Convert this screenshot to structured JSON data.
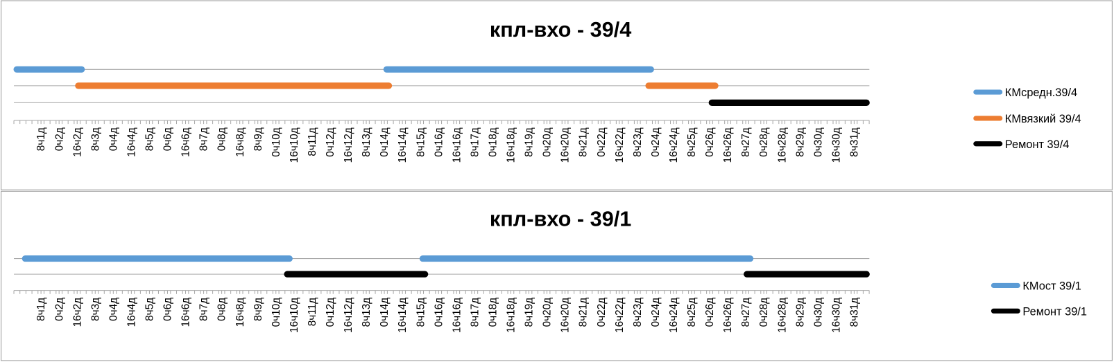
{
  "chart_data": [
    {
      "type": "timeline",
      "title": "кпл-вхо - 39/4",
      "xlim": [
        -16,
        744
      ],
      "legend": "right",
      "xticks": [
        {
          "value": 8,
          "label": "8ч1д"
        },
        {
          "value": 24,
          "label": "0ч2д"
        },
        {
          "value": 40,
          "label": "16ч2д"
        },
        {
          "value": 56,
          "label": "8ч3д"
        },
        {
          "value": 72,
          "label": "0ч4д"
        },
        {
          "value": 88,
          "label": "16ч4д"
        },
        {
          "value": 104,
          "label": "8ч5д"
        },
        {
          "value": 120,
          "label": "0ч6д"
        },
        {
          "value": 136,
          "label": "16ч6д"
        },
        {
          "value": 152,
          "label": "8ч7д"
        },
        {
          "value": 168,
          "label": "0ч8д"
        },
        {
          "value": 184,
          "label": "16ч8д"
        },
        {
          "value": 200,
          "label": "8ч9д"
        },
        {
          "value": 216,
          "label": "0ч10д"
        },
        {
          "value": 232,
          "label": "16ч10д"
        },
        {
          "value": 248,
          "label": "8ч11д"
        },
        {
          "value": 264,
          "label": "0ч12д"
        },
        {
          "value": 280,
          "label": "16ч12д"
        },
        {
          "value": 296,
          "label": "8ч13д"
        },
        {
          "value": 312,
          "label": "0ч14д"
        },
        {
          "value": 328,
          "label": "16ч14д"
        },
        {
          "value": 344,
          "label": "8ч15д"
        },
        {
          "value": 360,
          "label": "0ч16д"
        },
        {
          "value": 376,
          "label": "16ч16д"
        },
        {
          "value": 392,
          "label": "8ч17д"
        },
        {
          "value": 408,
          "label": "0ч18д"
        },
        {
          "value": 424,
          "label": "16ч18д"
        },
        {
          "value": 440,
          "label": "8ч19д"
        },
        {
          "value": 456,
          "label": "0ч20д"
        },
        {
          "value": 472,
          "label": "16ч20д"
        },
        {
          "value": 488,
          "label": "8ч21д"
        },
        {
          "value": 504,
          "label": "0ч22д"
        },
        {
          "value": 520,
          "label": "16ч22д"
        },
        {
          "value": 536,
          "label": "8ч23д"
        },
        {
          "value": 552,
          "label": "0ч24д"
        },
        {
          "value": 568,
          "label": "16ч24д"
        },
        {
          "value": 584,
          "label": "8ч25д"
        },
        {
          "value": 600,
          "label": "0ч26д"
        },
        {
          "value": 616,
          "label": "16ч26д"
        },
        {
          "value": 632,
          "label": "8ч27д"
        },
        {
          "value": 648,
          "label": "0ч28д"
        },
        {
          "value": 664,
          "label": "16ч28д"
        },
        {
          "value": 680,
          "label": "8ч29д"
        },
        {
          "value": 696,
          "label": "0ч30д"
        },
        {
          "value": 712,
          "label": "16ч30д"
        },
        {
          "value": 728,
          "label": "8ч31д"
        }
      ],
      "series": [
        {
          "name": "КМсредн.39/4",
          "color": "#5b9bd5",
          "segments": [
            [
              -16,
              44
            ],
            [
              314,
              548
            ]
          ]
        },
        {
          "name": "КМвязкий 39/4",
          "color": "#ed7d31",
          "segments": [
            [
              41,
              316
            ],
            [
              546,
              605
            ]
          ]
        },
        {
          "name": "Ремонт 39/4",
          "color": "#000000",
          "segments": [
            [
              602,
              744
            ]
          ]
        }
      ]
    },
    {
      "type": "timeline",
      "title": "кпл-вхо - 39/1",
      "xlim": [
        -16,
        744
      ],
      "legend": "right",
      "xticks": [
        {
          "value": 8,
          "label": "8ч1д"
        },
        {
          "value": 24,
          "label": "0ч2д"
        },
        {
          "value": 40,
          "label": "16ч2д"
        },
        {
          "value": 56,
          "label": "8ч3д"
        },
        {
          "value": 72,
          "label": "0ч4д"
        },
        {
          "value": 88,
          "label": "16ч4д"
        },
        {
          "value": 104,
          "label": "8ч5д"
        },
        {
          "value": 120,
          "label": "0ч6д"
        },
        {
          "value": 136,
          "label": "16ч6д"
        },
        {
          "value": 152,
          "label": "8ч7д"
        },
        {
          "value": 168,
          "label": "0ч8д"
        },
        {
          "value": 184,
          "label": "16ч8д"
        },
        {
          "value": 200,
          "label": "8ч9д"
        },
        {
          "value": 216,
          "label": "0ч10д"
        },
        {
          "value": 232,
          "label": "16ч10д"
        },
        {
          "value": 248,
          "label": "8ч11д"
        },
        {
          "value": 264,
          "label": "0ч12д"
        },
        {
          "value": 280,
          "label": "16ч12д"
        },
        {
          "value": 296,
          "label": "8ч13д"
        },
        {
          "value": 312,
          "label": "0ч14д"
        },
        {
          "value": 328,
          "label": "16ч14д"
        },
        {
          "value": 344,
          "label": "8ч15д"
        },
        {
          "value": 360,
          "label": "0ч16д"
        },
        {
          "value": 376,
          "label": "16ч16д"
        },
        {
          "value": 392,
          "label": "8ч17д"
        },
        {
          "value": 408,
          "label": "0ч18д"
        },
        {
          "value": 424,
          "label": "16ч18д"
        },
        {
          "value": 440,
          "label": "8ч19д"
        },
        {
          "value": 456,
          "label": "0ч20д"
        },
        {
          "value": 472,
          "label": "16ч20д"
        },
        {
          "value": 488,
          "label": "8ч21д"
        },
        {
          "value": 504,
          "label": "0ч22д"
        },
        {
          "value": 520,
          "label": "16ч22д"
        },
        {
          "value": 536,
          "label": "8ч23д"
        },
        {
          "value": 552,
          "label": "0ч24д"
        },
        {
          "value": 568,
          "label": "16ч24д"
        },
        {
          "value": 584,
          "label": "8ч25д"
        },
        {
          "value": 600,
          "label": "0ч26д"
        },
        {
          "value": 616,
          "label": "16ч26д"
        },
        {
          "value": 632,
          "label": "8ч27д"
        },
        {
          "value": 648,
          "label": "0ч28д"
        },
        {
          "value": 664,
          "label": "16ч28д"
        },
        {
          "value": 680,
          "label": "8ч29д"
        },
        {
          "value": 696,
          "label": "0ч30д"
        },
        {
          "value": 712,
          "label": "16ч30д"
        },
        {
          "value": 728,
          "label": "8ч31д"
        }
      ],
      "series": [
        {
          "name": "КМост 39/1",
          "color": "#5b9bd5",
          "segments": [
            [
              -6,
              228
            ],
            [
              346,
              636
            ]
          ]
        },
        {
          "name": "Ремонт 39/1",
          "color": "#000000",
          "segments": [
            [
              226,
              348
            ],
            [
              633,
              744
            ]
          ]
        }
      ]
    }
  ]
}
